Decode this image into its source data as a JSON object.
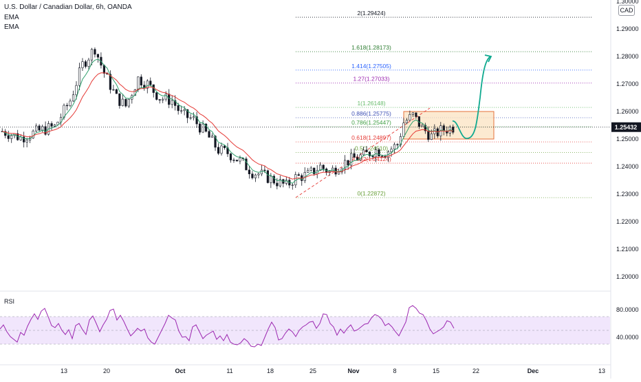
{
  "header": {
    "title": "U.S. Dollar / Canadian Dollar, 6h, OANDA",
    "indicator_1": "EMA",
    "indicator_2": "EMA",
    "currency": "CAD"
  },
  "rsi_panel": {
    "label": "RSI",
    "tick_labels": [
      "80.0000",
      "40.0000"
    ]
  },
  "colors": {
    "candle": "#131722",
    "ema_fast": "#2e9e6b",
    "ema_slow": "#e53935",
    "rsi_line": "#9c27b0",
    "rsi_band": "#ede0fb",
    "box_fill": "#fbe3c2",
    "box_stroke": "#e5713a",
    "arrow": "#0fa98f",
    "price_badge": "#131722"
  },
  "chart_data": [
    {
      "type": "candlestick",
      "title": "U.S. Dollar / Canadian Dollar, 6h, OANDA",
      "xlabel": "",
      "ylabel": "CAD",
      "ylim": [
        1.19,
        1.3
      ],
      "x_tick_labels": [
        "13",
        "20",
        "Oct",
        "11",
        "18",
        "25",
        "Nov",
        "8",
        "15",
        "22",
        "Dec",
        "13"
      ],
      "y_tick_labels": [
        "1.30000",
        "1.29000",
        "1.28000",
        "1.27000",
        "1.26000",
        "1.25000",
        "1.24000",
        "1.23000",
        "1.22000",
        "1.21000",
        "1.20000"
      ],
      "last_price": "1.25432",
      "price_anchors": [
        [
          0,
          1.2528
        ],
        [
          6,
          1.2505
        ],
        [
          12,
          1.253
        ],
        [
          17,
          1.2545
        ],
        [
          22,
          1.264
        ],
        [
          26,
          1.277
        ],
        [
          30,
          1.283
        ],
        [
          33,
          1.274
        ],
        [
          37,
          1.265
        ],
        [
          40,
          1.262
        ],
        [
          44,
          1.272
        ],
        [
          47,
          1.27
        ],
        [
          51,
          1.265
        ],
        [
          55,
          1.264
        ],
        [
          58,
          1.259
        ],
        [
          62,
          1.257
        ],
        [
          66,
          1.252
        ],
        [
          70,
          1.246
        ],
        [
          73,
          1.245
        ],
        [
          77,
          1.242
        ],
        [
          81,
          1.238
        ],
        [
          84,
          1.237
        ],
        [
          88,
          1.235
        ],
        [
          92,
          1.233
        ],
        [
          95,
          1.236
        ],
        [
          99,
          1.237
        ],
        [
          103,
          1.24
        ],
        [
          106,
          1.238
        ],
        [
          110,
          1.241
        ],
        [
          114,
          1.243
        ],
        [
          117,
          1.244
        ],
        [
          121,
          1.246
        ],
        [
          124,
          1.245
        ],
        [
          128,
          1.248
        ],
        [
          130,
          1.256
        ],
        [
          133,
          1.2585
        ],
        [
          136,
          1.254
        ],
        [
          139,
          1.251
        ],
        [
          142,
          1.253
        ],
        [
          146,
          1.2543
        ]
      ],
      "fibonacci_levels": [
        {
          "ratio": "2",
          "price": 1.29424,
          "label": "2(1.29424)",
          "color": "#131722"
        },
        {
          "ratio": "1.618",
          "price": 1.28173,
          "label": "1.618(1.28173)",
          "color": "#2e7d32"
        },
        {
          "ratio": "1.414",
          "price": 1.27505,
          "label": "1.414(1.27505)",
          "color": "#2962ff"
        },
        {
          "ratio": "1.27",
          "price": 1.27033,
          "label": "1.27(1.27033)",
          "color": "#9c27b0"
        },
        {
          "ratio": "1",
          "price": 1.26148,
          "label": "1(1.26148)",
          "color": "#66bb6a"
        },
        {
          "ratio": "0.886",
          "price": 1.25775,
          "label": "0.886(1.25775)",
          "color": "#3f51b5"
        },
        {
          "ratio": "0.786",
          "price": 1.25447,
          "label": "0.786(1.25447)",
          "color": "#43a047"
        },
        {
          "ratio": "0.618",
          "price": 1.24897,
          "label": "0.618(1.24897)",
          "color": "#e53935"
        },
        {
          "ratio": "0.5",
          "price": 1.2451,
          "label": "0.5(1.24510)",
          "color": "#689f38"
        },
        {
          "ratio": "0.382",
          "price": 1.24124,
          "label": "0.382(1.24124)",
          "color": "#e53935"
        },
        {
          "ratio": "0",
          "price": 1.22872,
          "label": "0(1.22872)",
          "color": "#689f38"
        }
      ],
      "zone_box": {
        "price_top": 1.26,
        "price_bottom": 1.25
      },
      "projection": {
        "from_price": 1.2535,
        "dip_price": 1.25,
        "target_price": 1.28
      }
    },
    {
      "type": "line",
      "title": "RSI",
      "xlabel": "",
      "ylabel": "",
      "band": [
        30,
        70
      ],
      "y_tick_labels": [
        "80.0000",
        "40.0000"
      ],
      "x": [
        0,
        5,
        10,
        15,
        20,
        25,
        30,
        35,
        40,
        45,
        50,
        55,
        60,
        65,
        70,
        75,
        80,
        85,
        90,
        95,
        100,
        105,
        110,
        115,
        120,
        125,
        130,
        135,
        140,
        145,
        150,
        155,
        160,
        165,
        170,
        175,
        180,
        185,
        190,
        195,
        200,
        205,
        210,
        215,
        220,
        225,
        230,
        235,
        240,
        245,
        250,
        255,
        260,
        265,
        270,
        275,
        280,
        285,
        290,
        295,
        300,
        305,
        310,
        315,
        320,
        325,
        330,
        335,
        340,
        345,
        350,
        355,
        360,
        365,
        370,
        375,
        380,
        385,
        390,
        395,
        400,
        405,
        410,
        415,
        420,
        425,
        430,
        435,
        440,
        445,
        450,
        455,
        460,
        465,
        470,
        475,
        480,
        485,
        490,
        495,
        500,
        505,
        510,
        515,
        520,
        525,
        530,
        535,
        540,
        545,
        550,
        555,
        560,
        565,
        570,
        575,
        580,
        585,
        590,
        595,
        600,
        605,
        610,
        615,
        620,
        625,
        630,
        635,
        640,
        645,
        650,
        655,
        660
      ],
      "y": [
        52,
        58,
        48,
        41,
        37,
        33,
        47,
        43,
        56,
        66,
        74,
        66,
        78,
        82,
        70,
        57,
        54,
        60,
        50,
        44,
        51,
        38,
        57,
        60,
        51,
        44,
        65,
        71,
        60,
        48,
        58,
        66,
        79,
        81,
        65,
        72,
        63,
        52,
        42,
        47,
        53,
        49,
        52,
        39,
        33,
        30,
        40,
        50,
        60,
        72,
        68,
        65,
        49,
        40,
        41,
        35,
        55,
        58,
        48,
        38,
        43,
        46,
        49,
        37,
        42,
        35,
        44,
        33,
        30,
        29,
        32,
        38,
        34,
        27,
        26,
        30,
        28,
        40,
        52,
        62,
        54,
        36,
        38,
        46,
        52,
        48,
        41,
        50,
        55,
        58,
        62,
        63,
        53,
        60,
        74,
        73,
        60,
        55,
        43,
        52,
        46,
        53,
        58,
        49,
        51,
        55,
        59,
        60,
        68,
        73,
        71,
        66,
        57,
        60,
        55,
        48,
        42,
        52,
        62,
        83,
        86,
        82,
        75,
        73,
        64,
        52,
        45,
        48,
        51,
        55,
        64,
        62,
        53
      ]
    }
  ]
}
